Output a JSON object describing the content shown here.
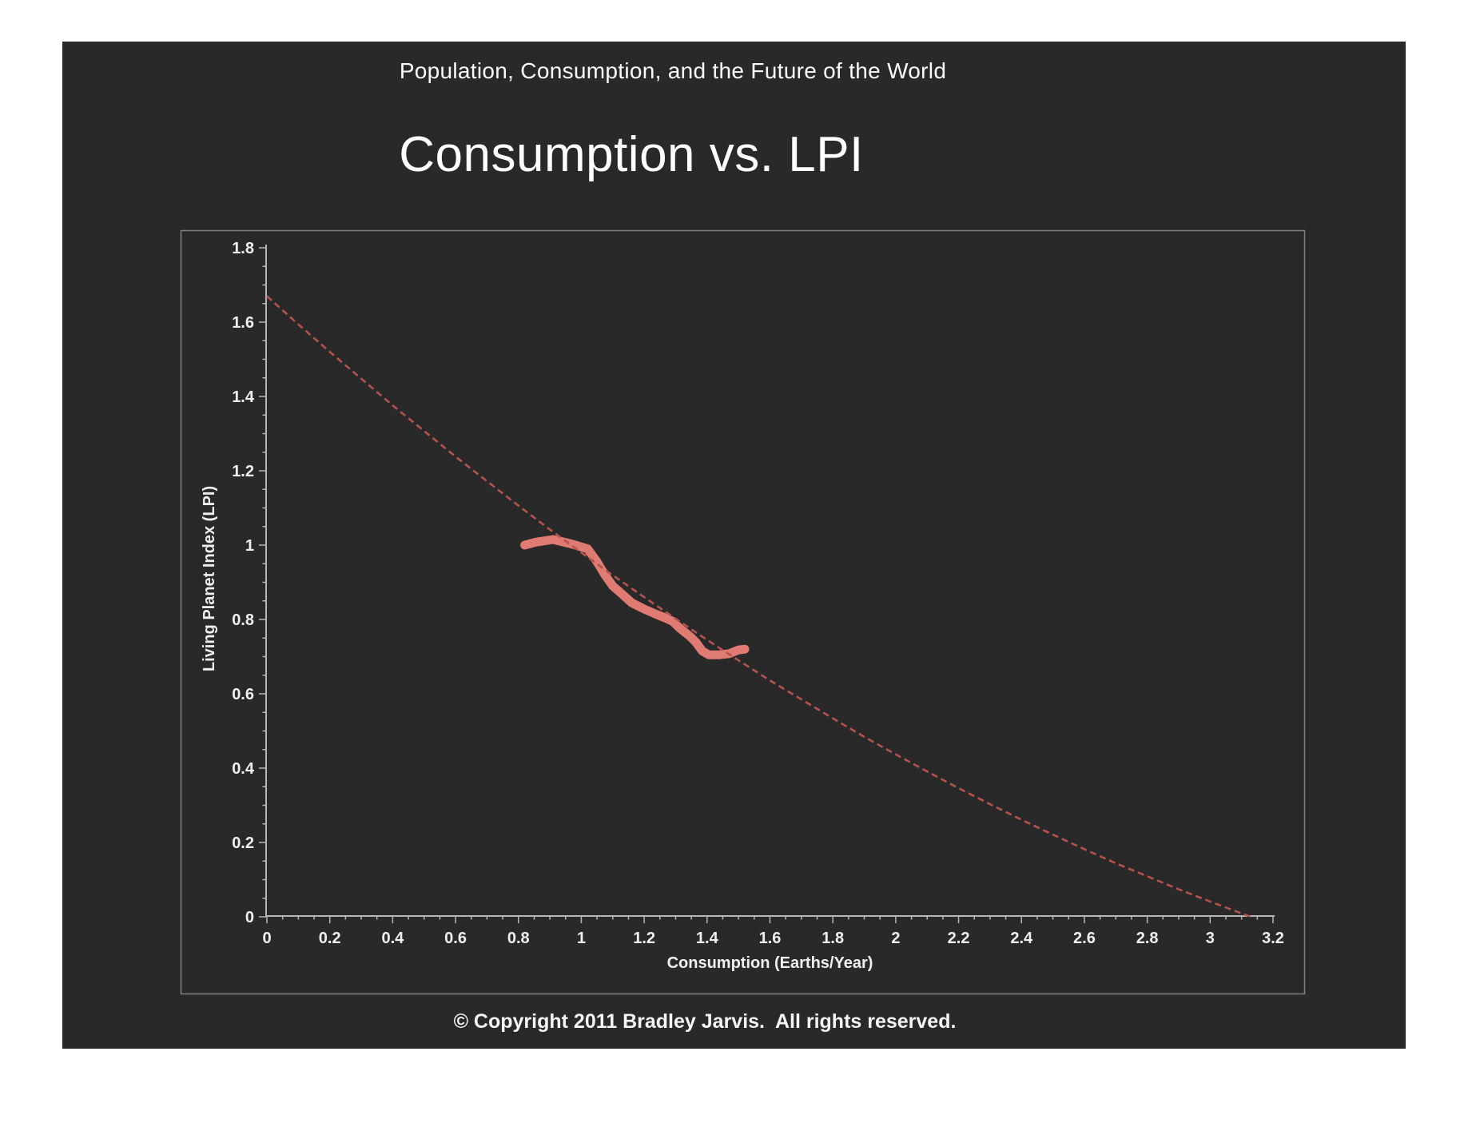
{
  "slide": {
    "header": "Population, Consumption, and the Future of the World",
    "title": "Consumption vs. LPI",
    "footer": "© Copyright 2011 Bradley Jarvis.  All rights reserved."
  },
  "colors": {
    "page_bg": "#ffffff",
    "slide_bg": "#292929",
    "frame_border": "#818181",
    "axis": "#b7b7b7",
    "tick_label": "#f0f0f0",
    "heading_text": "#ffffff",
    "data_line": "#e07b73",
    "trend_line": "#b3534e"
  },
  "chart_data": {
    "type": "line",
    "title": "",
    "xlabel": "Consumption (Earths/Year)",
    "ylabel": "Living Planet Index (LPI)",
    "xlim": [
      0,
      3.2
    ],
    "ylim": [
      0,
      1.8
    ],
    "x_tick_labels": [
      "0",
      "0.2",
      "0.4",
      "0.6",
      "0.8",
      "1",
      "1.2",
      "1.4",
      "1.6",
      "1.8",
      "2",
      "2.2",
      "2.4",
      "2.6",
      "2.8",
      "3",
      "3.2"
    ],
    "y_tick_labels": [
      "0",
      "0.2",
      "0.4",
      "0.6",
      "0.8",
      "1",
      "1.2",
      "1.4",
      "1.6",
      "1.8"
    ],
    "x_tick_step": 0.2,
    "y_tick_step": 0.2,
    "minor_tick_step": 0.05,
    "grid": false,
    "legend": false,
    "series": [
      {
        "name": "observed-lpi",
        "style": "solid-thick",
        "points": [
          [
            0.82,
            1.0
          ],
          [
            0.855,
            1.008
          ],
          [
            0.91,
            1.015
          ],
          [
            0.97,
            1.003
          ],
          [
            1.02,
            0.99
          ],
          [
            1.05,
            0.955
          ],
          [
            1.075,
            0.92
          ],
          [
            1.1,
            0.89
          ],
          [
            1.13,
            0.868
          ],
          [
            1.16,
            0.845
          ],
          [
            1.2,
            0.828
          ],
          [
            1.235,
            0.815
          ],
          [
            1.27,
            0.803
          ],
          [
            1.29,
            0.795
          ],
          [
            1.315,
            0.775
          ],
          [
            1.345,
            0.755
          ],
          [
            1.365,
            0.738
          ],
          [
            1.385,
            0.715
          ],
          [
            1.405,
            0.705
          ],
          [
            1.44,
            0.705
          ],
          [
            1.47,
            0.708
          ],
          [
            1.5,
            0.718
          ],
          [
            1.52,
            0.72
          ]
        ]
      },
      {
        "name": "trend-fit",
        "style": "dashed",
        "points": [
          [
            0.0,
            1.67
          ],
          [
            0.1,
            1.594
          ],
          [
            0.2,
            1.52
          ],
          [
            0.3,
            1.448
          ],
          [
            0.4,
            1.376
          ],
          [
            0.5,
            1.307
          ],
          [
            0.6,
            1.238
          ],
          [
            0.7,
            1.172
          ],
          [
            0.8,
            1.106
          ],
          [
            0.9,
            1.042
          ],
          [
            1.0,
            0.98
          ],
          [
            1.1,
            0.919
          ],
          [
            1.2,
            0.86
          ],
          [
            1.3,
            0.802
          ],
          [
            1.4,
            0.745
          ],
          [
            1.5,
            0.69
          ],
          [
            1.6,
            0.636
          ],
          [
            1.7,
            0.585
          ],
          [
            1.8,
            0.534
          ],
          [
            1.9,
            0.484
          ],
          [
            2.0,
            0.437
          ],
          [
            2.1,
            0.391
          ],
          [
            2.2,
            0.346
          ],
          [
            2.3,
            0.303
          ],
          [
            2.4,
            0.261
          ],
          [
            2.5,
            0.221
          ],
          [
            2.6,
            0.182
          ],
          [
            2.7,
            0.144
          ],
          [
            2.8,
            0.109
          ],
          [
            2.9,
            0.074
          ],
          [
            3.0,
            0.041
          ],
          [
            3.1,
            0.009
          ],
          [
            3.13,
            0.0
          ]
        ]
      }
    ]
  }
}
